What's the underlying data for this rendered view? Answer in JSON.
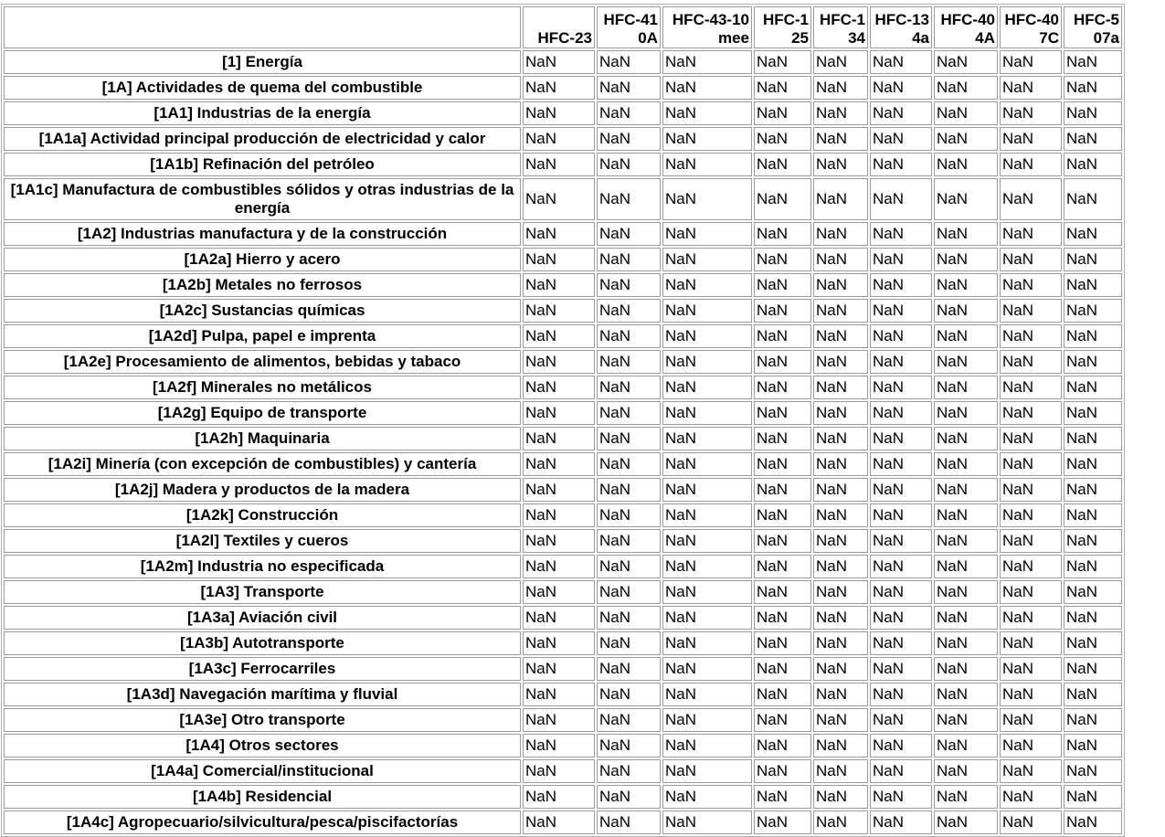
{
  "table": {
    "corner_header": "",
    "columns": [
      "HFC-23",
      "HFC-410A",
      "HFC-43-10mee",
      "HFC-125",
      "HFC-134",
      "HFC-134a",
      "HFC-404A",
      "HFC-407C",
      "HFC-507a"
    ],
    "rows": [
      {
        "label": "[1] Energía",
        "values": [
          "NaN",
          "NaN",
          "NaN",
          "NaN",
          "NaN",
          "NaN",
          "NaN",
          "NaN",
          "NaN"
        ]
      },
      {
        "label": "[1A] Actividades de quema del combustible",
        "values": [
          "NaN",
          "NaN",
          "NaN",
          "NaN",
          "NaN",
          "NaN",
          "NaN",
          "NaN",
          "NaN"
        ]
      },
      {
        "label": "[1A1] Industrias de la energía",
        "values": [
          "NaN",
          "NaN",
          "NaN",
          "NaN",
          "NaN",
          "NaN",
          "NaN",
          "NaN",
          "NaN"
        ]
      },
      {
        "label": "[1A1a] Actividad principal producción de electricidad y calor",
        "values": [
          "NaN",
          "NaN",
          "NaN",
          "NaN",
          "NaN",
          "NaN",
          "NaN",
          "NaN",
          "NaN"
        ]
      },
      {
        "label": "[1A1b] Refinación del petróleo",
        "values": [
          "NaN",
          "NaN",
          "NaN",
          "NaN",
          "NaN",
          "NaN",
          "NaN",
          "NaN",
          "NaN"
        ]
      },
      {
        "label": "[1A1c] Manufactura de combustibles sólidos y otras industrias de la energía",
        "values": [
          "NaN",
          "NaN",
          "NaN",
          "NaN",
          "NaN",
          "NaN",
          "NaN",
          "NaN",
          "NaN"
        ]
      },
      {
        "label": "[1A2] Industrias manufactura y de la construcción",
        "values": [
          "NaN",
          "NaN",
          "NaN",
          "NaN",
          "NaN",
          "NaN",
          "NaN",
          "NaN",
          "NaN"
        ]
      },
      {
        "label": "[1A2a] Hierro y acero",
        "values": [
          "NaN",
          "NaN",
          "NaN",
          "NaN",
          "NaN",
          "NaN",
          "NaN",
          "NaN",
          "NaN"
        ]
      },
      {
        "label": "[1A2b] Metales no ferrosos",
        "values": [
          "NaN",
          "NaN",
          "NaN",
          "NaN",
          "NaN",
          "NaN",
          "NaN",
          "NaN",
          "NaN"
        ]
      },
      {
        "label": "[1A2c] Sustancias químicas",
        "values": [
          "NaN",
          "NaN",
          "NaN",
          "NaN",
          "NaN",
          "NaN",
          "NaN",
          "NaN",
          "NaN"
        ]
      },
      {
        "label": "[1A2d] Pulpa, papel e imprenta",
        "values": [
          "NaN",
          "NaN",
          "NaN",
          "NaN",
          "NaN",
          "NaN",
          "NaN",
          "NaN",
          "NaN"
        ]
      },
      {
        "label": "[1A2e] Procesamiento de alimentos, bebidas y tabaco",
        "values": [
          "NaN",
          "NaN",
          "NaN",
          "NaN",
          "NaN",
          "NaN",
          "NaN",
          "NaN",
          "NaN"
        ]
      },
      {
        "label": "[1A2f] Minerales no metálicos",
        "values": [
          "NaN",
          "NaN",
          "NaN",
          "NaN",
          "NaN",
          "NaN",
          "NaN",
          "NaN",
          "NaN"
        ]
      },
      {
        "label": "[1A2g] Equipo de transporte",
        "values": [
          "NaN",
          "NaN",
          "NaN",
          "NaN",
          "NaN",
          "NaN",
          "NaN",
          "NaN",
          "NaN"
        ]
      },
      {
        "label": "[1A2h] Maquinaria",
        "values": [
          "NaN",
          "NaN",
          "NaN",
          "NaN",
          "NaN",
          "NaN",
          "NaN",
          "NaN",
          "NaN"
        ]
      },
      {
        "label": "[1A2i] Minería (con excepción de combustibles) y cantería",
        "values": [
          "NaN",
          "NaN",
          "NaN",
          "NaN",
          "NaN",
          "NaN",
          "NaN",
          "NaN",
          "NaN"
        ]
      },
      {
        "label": "[1A2j] Madera y productos de la madera",
        "values": [
          "NaN",
          "NaN",
          "NaN",
          "NaN",
          "NaN",
          "NaN",
          "NaN",
          "NaN",
          "NaN"
        ]
      },
      {
        "label": "[1A2k] Construcción",
        "values": [
          "NaN",
          "NaN",
          "NaN",
          "NaN",
          "NaN",
          "NaN",
          "NaN",
          "NaN",
          "NaN"
        ]
      },
      {
        "label": "[1A2l] Textiles y cueros",
        "values": [
          "NaN",
          "NaN",
          "NaN",
          "NaN",
          "NaN",
          "NaN",
          "NaN",
          "NaN",
          "NaN"
        ]
      },
      {
        "label": "[1A2m] Industria no especificada",
        "values": [
          "NaN",
          "NaN",
          "NaN",
          "NaN",
          "NaN",
          "NaN",
          "NaN",
          "NaN",
          "NaN"
        ]
      },
      {
        "label": "[1A3] Transporte",
        "values": [
          "NaN",
          "NaN",
          "NaN",
          "NaN",
          "NaN",
          "NaN",
          "NaN",
          "NaN",
          "NaN"
        ]
      },
      {
        "label": "[1A3a] Aviación civil",
        "values": [
          "NaN",
          "NaN",
          "NaN",
          "NaN",
          "NaN",
          "NaN",
          "NaN",
          "NaN",
          "NaN"
        ]
      },
      {
        "label": "[1A3b] Autotransporte",
        "values": [
          "NaN",
          "NaN",
          "NaN",
          "NaN",
          "NaN",
          "NaN",
          "NaN",
          "NaN",
          "NaN"
        ]
      },
      {
        "label": "[1A3c] Ferrocarriles",
        "values": [
          "NaN",
          "NaN",
          "NaN",
          "NaN",
          "NaN",
          "NaN",
          "NaN",
          "NaN",
          "NaN"
        ]
      },
      {
        "label": "[1A3d] Navegación marítima y fluvial",
        "values": [
          "NaN",
          "NaN",
          "NaN",
          "NaN",
          "NaN",
          "NaN",
          "NaN",
          "NaN",
          "NaN"
        ]
      },
      {
        "label": "[1A3e] Otro transporte",
        "values": [
          "NaN",
          "NaN",
          "NaN",
          "NaN",
          "NaN",
          "NaN",
          "NaN",
          "NaN",
          "NaN"
        ]
      },
      {
        "label": "[1A4] Otros sectores",
        "values": [
          "NaN",
          "NaN",
          "NaN",
          "NaN",
          "NaN",
          "NaN",
          "NaN",
          "NaN",
          "NaN"
        ]
      },
      {
        "label": "[1A4a] Comercial/institucional",
        "values": [
          "NaN",
          "NaN",
          "NaN",
          "NaN",
          "NaN",
          "NaN",
          "NaN",
          "NaN",
          "NaN"
        ]
      },
      {
        "label": "[1A4b] Residencial",
        "values": [
          "NaN",
          "NaN",
          "NaN",
          "NaN",
          "NaN",
          "NaN",
          "NaN",
          "NaN",
          "NaN"
        ]
      },
      {
        "label": "[1A4c] Agropecuario/silvicultura/pesca/piscifactorías",
        "values": [
          "NaN",
          "NaN",
          "NaN",
          "NaN",
          "NaN",
          "NaN",
          "NaN",
          "NaN",
          "NaN"
        ]
      }
    ]
  }
}
